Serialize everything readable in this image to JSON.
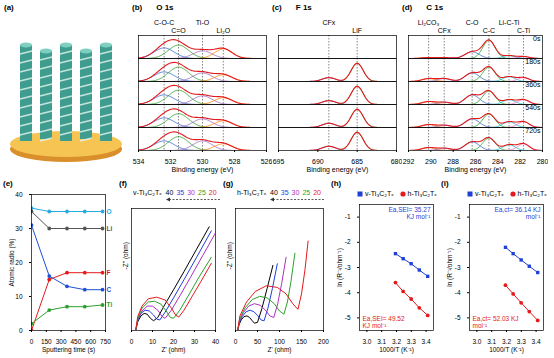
{
  "chart_data": [
    {
      "type": "illustration",
      "panel": "(a)"
    },
    {
      "type": "xps",
      "panel": "(b)",
      "title": "O 1s",
      "x_label": "Binding energy (eV)",
      "xlim": [
        534,
        526
      ],
      "xticks": [
        534,
        532,
        530,
        528,
        526
      ],
      "ylim": [
        0,
        1.2
      ],
      "tick_labels": "x",
      "color": "#e41a1c",
      "components": [
        {
          "name": "C-O-C",
          "color": "#3366cc",
          "center": 532.4,
          "fwhm": 1.5
        },
        {
          "name": "C=O",
          "color": "#2ca02c",
          "center": 531.5,
          "fwhm": 1.5
        },
        {
          "name": "Ti-O",
          "color": "#9467bd",
          "center": 530.0,
          "fwhm": 1.4
        },
        {
          "name": "Li₂O",
          "color": "#ff7f0e",
          "center": 528.7,
          "fwhm": 1.3
        }
      ],
      "spectra": [
        {
          "heights": [
            0.55,
            0.7,
            0.4,
            0.5
          ]
        },
        {
          "heights": [
            0.5,
            0.75,
            0.45,
            0.35
          ]
        },
        {
          "heights": [
            0.5,
            0.75,
            0.45,
            0.35
          ]
        },
        {
          "heights": [
            0.5,
            0.72,
            0.45,
            0.35
          ]
        },
        {
          "heights": [
            0.5,
            0.72,
            0.5,
            0.35
          ]
        }
      ]
    },
    {
      "type": "xps",
      "panel": "(c)",
      "title": "F 1s",
      "x_label": "Binding energy (eV)",
      "xlim": [
        695,
        680
      ],
      "xticks": [
        695,
        690,
        685,
        680
      ],
      "ylim": [
        0,
        1.2
      ],
      "tick_labels": "x",
      "color": "#e41a1c",
      "components": [
        {
          "name": "CFx",
          "color": "#3366cc",
          "center": 688.6,
          "fwhm": 2.0
        },
        {
          "name": "LiF",
          "color": "#2ca02c",
          "center": 685.0,
          "fwhm": 1.8
        }
      ],
      "spectra": [
        {
          "heights": [
            0,
            0
          ]
        },
        {
          "heights": [
            0.2,
            0.95
          ]
        },
        {
          "heights": [
            0.2,
            0.95
          ]
        },
        {
          "heights": [
            0.22,
            0.95
          ]
        },
        {
          "heights": [
            0.22,
            0.95
          ]
        }
      ]
    },
    {
      "type": "xps",
      "panel": "(d)",
      "title": "C 1s",
      "x_label": "Binding energy (eV)",
      "xlim": [
        292,
        280
      ],
      "xticks": [
        292,
        290,
        288,
        286,
        284,
        282,
        280
      ],
      "ylim": [
        0,
        1.2
      ],
      "tick_labels": "x",
      "color": "#e41a1c",
      "components": [
        {
          "name": "Li₂CO₃",
          "color": "#ff7f0e",
          "center": 290.2,
          "fwhm": 1.4
        },
        {
          "name": "CFx",
          "color": "#9467bd",
          "center": 288.8,
          "fwhm": 1.4
        },
        {
          "name": "C-O",
          "color": "#3366cc",
          "center": 286.3,
          "fwhm": 1.5
        },
        {
          "name": "C-C",
          "color": "#2ca02c",
          "center": 284.8,
          "fwhm": 1.3
        },
        {
          "name": "Li-C-Ti",
          "color": "#17becf",
          "center": 283.0,
          "fwhm": 1.3
        },
        {
          "name": "C-Ti",
          "color": "#e377c2",
          "center": 281.7,
          "fwhm": 1.2
        }
      ],
      "spectra": [
        {
          "label": "0s",
          "heights": [
            0.05,
            0.05,
            0.35,
            0.95,
            0.15,
            0.1
          ]
        },
        {
          "label": "180s",
          "heights": [
            0.15,
            0.15,
            0.45,
            0.75,
            0.25,
            0.2
          ]
        },
        {
          "label": "360s",
          "heights": [
            0.15,
            0.12,
            0.5,
            0.7,
            0.25,
            0.25
          ]
        },
        {
          "label": "540s",
          "heights": [
            0.15,
            0.12,
            0.45,
            0.7,
            0.3,
            0.3
          ]
        },
        {
          "label": "720s",
          "heights": [
            0.15,
            0.12,
            0.45,
            0.65,
            0.3,
            0.35
          ]
        }
      ]
    },
    {
      "type": "line",
      "panel": "(e)",
      "x_label": "Sputtering time (s)",
      "y_label": "Atomic radio (%)",
      "x": [
        0,
        180,
        360,
        540,
        720
      ],
      "xlim": [
        0,
        750
      ],
      "xticks": [
        0,
        150,
        300,
        450,
        600,
        750
      ],
      "ylim": [
        0,
        40
      ],
      "yticks": [
        0,
        10,
        20,
        30,
        40
      ],
      "marker": "circle",
      "legend": "right",
      "series": [
        {
          "name": "O",
          "color": "#27aae1",
          "values": [
            36,
            35,
            35,
            35,
            35
          ]
        },
        {
          "name": "Li",
          "color": "#555555",
          "values": [
            35,
            30,
            30,
            30,
            30
          ]
        },
        {
          "name": "F",
          "color": "#e41a1c",
          "values": [
            0,
            15,
            17,
            17,
            17
          ]
        },
        {
          "name": "C",
          "color": "#1f4fd6",
          "values": [
            31,
            16,
            13,
            12,
            12
          ]
        },
        {
          "name": "Ti",
          "color": "#2ca02c",
          "values": [
            2,
            6,
            7,
            7,
            7.5
          ]
        }
      ]
    },
    {
      "type": "line",
      "panel": "(f)",
      "title": "v-Ti₃C₂Tₓ",
      "legend": "top",
      "x_label": "Z' (ohm)",
      "y_label": "-Z'' (ohm)",
      "xlim": [
        0,
        40
      ],
      "xticks": [
        0,
        10,
        20,
        30,
        40
      ],
      "ylim": [
        0,
        30
      ],
      "tick_labels": "x",
      "series": [
        {
          "name": "40",
          "color": "#000000",
          "x": [
            2,
            3,
            4.5,
            6,
            7.5,
            9,
            10.5,
            12.5,
            16,
            20,
            25,
            31,
            37
          ],
          "values": [
            0,
            2.2,
            3.6,
            4.2,
            4,
            3,
            2.4,
            3.2,
            6.5,
            10,
            14.5,
            20,
            25.5
          ]
        },
        {
          "name": "35",
          "color": "#1f3fd6",
          "x": [
            2,
            3,
            4.5,
            6.5,
            8.5,
            10.5,
            12,
            13.5,
            16,
            20,
            25,
            31,
            38
          ],
          "values": [
            0,
            2.5,
            4.2,
            5,
            4.8,
            3.8,
            2.8,
            2.6,
            4.5,
            8,
            12.5,
            18,
            24.5
          ]
        },
        {
          "name": "30",
          "color": "#b030c0",
          "x": [
            2,
            3,
            5,
            7.5,
            10,
            12.5,
            14.5,
            16,
            19,
            23,
            28,
            34,
            40
          ],
          "values": [
            0,
            2.8,
            4.8,
            6,
            6,
            5,
            3.5,
            3,
            5,
            8.5,
            13,
            18.5,
            24
          ]
        },
        {
          "name": "25",
          "color": "#2ca02c",
          "x": [
            2,
            3,
            5,
            8,
            11,
            14,
            16.5,
            18.5,
            20,
            23,
            27,
            32,
            38
          ],
          "values": [
            0,
            3,
            5.5,
            7,
            7.2,
            6.5,
            4.8,
            3.2,
            3,
            5,
            8.5,
            13,
            18
          ]
        },
        {
          "name": "20",
          "color": "#e41a1c",
          "x": [
            2,
            3,
            5,
            8,
            12,
            16,
            19,
            21,
            22.5,
            25,
            29,
            33,
            38
          ],
          "values": [
            0,
            3.5,
            6,
            7.8,
            8.2,
            7.5,
            5.5,
            3.8,
            3.3,
            5,
            8.5,
            12,
            16.5
          ]
        }
      ]
    },
    {
      "type": "line",
      "panel": "(g)",
      "title": "h-Ti₃C₂Tₓ",
      "legend": "top",
      "x_label": "Z' (ohm)",
      "y_label": "-Z'' (ohm)",
      "xlim": [
        0,
        200
      ],
      "xticks": [
        0,
        50,
        100,
        150,
        200
      ],
      "ylim": [
        0,
        150
      ],
      "tick_labels": "x",
      "series": [
        {
          "name": "40",
          "color": "#000000",
          "x": [
            5,
            8,
            13,
            19,
            26,
            32,
            38,
            43,
            50,
            60,
            72,
            85
          ],
          "values": [
            0,
            7,
            13,
            17,
            18,
            16,
            12,
            9,
            10,
            27,
            52,
            80
          ]
        },
        {
          "name": "35",
          "color": "#1f3fd6",
          "x": [
            5,
            8,
            15,
            24,
            33,
            42,
            51,
            58,
            65,
            74,
            84,
            95
          ],
          "values": [
            0,
            9,
            17,
            23,
            25,
            23,
            18,
            13,
            12,
            28,
            52,
            82
          ]
        },
        {
          "name": "30",
          "color": "#b030c0",
          "x": [
            5,
            9,
            18,
            30,
            43,
            56,
            68,
            78,
            87,
            96,
            105,
            115
          ],
          "values": [
            0,
            12,
            22,
            30,
            33,
            31,
            25,
            18,
            16,
            33,
            58,
            90
          ]
        },
        {
          "name": "25",
          "color": "#2ca02c",
          "x": [
            5,
            10,
            22,
            38,
            55,
            72,
            88,
            100,
            110,
            118,
            126,
            135
          ],
          "values": [
            0,
            15,
            28,
            38,
            42,
            40,
            33,
            24,
            20,
            35,
            60,
            95
          ]
        },
        {
          "name": "20",
          "color": "#e41a1c",
          "x": [
            5,
            10,
            25,
            45,
            70,
            95,
            115,
            130,
            142,
            150,
            158,
            165
          ],
          "values": [
            0,
            18,
            35,
            48,
            55,
            53,
            45,
            33,
            26,
            45,
            75,
            110
          ]
        }
      ]
    },
    {
      "type": "scatter",
      "panel": "(h)",
      "legend": "top",
      "line_style": "solid",
      "x_label": "1000/T (K⁻¹)",
      "y_label": "ln (R⁻¹/ohm⁻¹)",
      "x": [
        3.193,
        3.245,
        3.299,
        3.354,
        3.411
      ],
      "xlim": [
        2.95,
        3.45
      ],
      "xticks": [
        {
          "value": 3,
          "label": "3.0"
        },
        3.1,
        3.2,
        3.3,
        3.4
      ],
      "ylim": [
        -5.5,
        -0.5
      ],
      "yticks": [
        -5,
        -4,
        -3,
        -2,
        -1
      ],
      "series": [
        {
          "name": "v-Ti₃C₂Tₓ",
          "color": "#1f3fd6",
          "marker": "square",
          "values": [
            -2.45,
            -2.65,
            -2.85,
            -3.1,
            -3.35
          ],
          "annotation": "Ea,SEI= 35.27 KJ mol⁻¹"
        },
        {
          "name": "h-Ti₃C₂Tₓ",
          "color": "#e41a1c",
          "marker": "circle",
          "values": [
            -3.6,
            -3.95,
            -4.25,
            -4.6,
            -4.9
          ],
          "annotation": "Ea,SEI= 49.52 KJ mol⁻¹"
        }
      ]
    },
    {
      "type": "scatter",
      "panel": "(i)",
      "legend": "top",
      "line_style": "solid",
      "x_label": "1000/T (K⁻¹)",
      "y_label": "ln (R⁻¹/ohm⁻¹)",
      "x": [
        3.193,
        3.245,
        3.299,
        3.354,
        3.411
      ],
      "xlim": [
        2.95,
        3.45
      ],
      "xticks": [
        {
          "value": 3,
          "label": "3.0"
        },
        3.1,
        3.2,
        3.3,
        3.4
      ],
      "ylim": [
        -5.5,
        -0.5
      ],
      "yticks": [
        -5,
        -4,
        -3,
        -2,
        -1
      ],
      "series": [
        {
          "name": "v-Ti₃C₂Tₓ",
          "color": "#1f3fd6",
          "marker": "square",
          "values": [
            -2.2,
            -2.45,
            -2.7,
            -2.95,
            -3.2
          ],
          "annotation": "Ea,ct= 36.14 KJ mol⁻¹"
        },
        {
          "name": "h-Ti₃C₂Tₓ",
          "color": "#e41a1c",
          "marker": "circle",
          "values": [
            -3.7,
            -4.05,
            -4.4,
            -4.75,
            -5.1
          ],
          "annotation": "Ea,ct= 52.03 KJ mol⁻¹"
        }
      ]
    }
  ]
}
